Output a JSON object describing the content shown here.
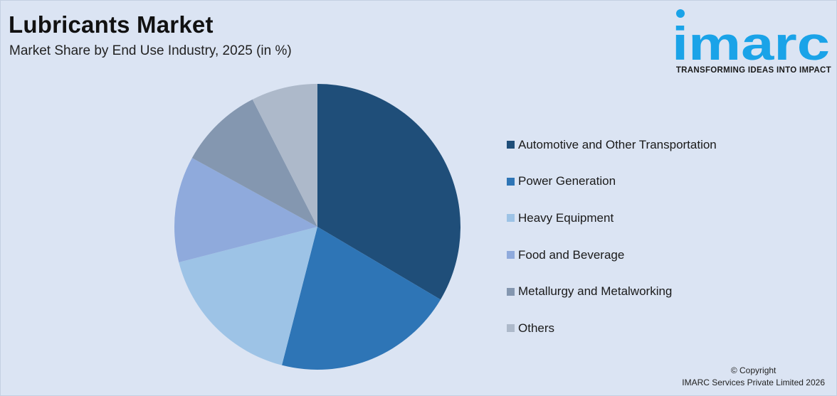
{
  "header": {
    "title": "Lubricants Market",
    "subtitle": "Market Share by End Use Industry, 2025 (in %)"
  },
  "logo": {
    "wordmark": "imarc",
    "tagline": "TRANSFORMING IDEAS INTO IMPACT",
    "color": "#1aa3e8"
  },
  "footer": {
    "copyright_line1": "© Copyright",
    "copyright_line2": "IMARC Services Private Limited 2026"
  },
  "chart_data": {
    "type": "pie",
    "title": "Lubricants Market",
    "subtitle": "Market Share by End Use Industry, 2025 (in %)",
    "legend_position": "right",
    "start": "12 o'clock, clockwise",
    "categories": [
      "Automotive and Other Transportation",
      "Power Generation",
      "Heavy Equipment",
      "Food and Beverage",
      "Metallurgy and Metalworking",
      "Others"
    ],
    "values": [
      33.5,
      20.5,
      17.0,
      12.0,
      9.5,
      7.5
    ],
    "colors": [
      "#1f4e79",
      "#2e75b6",
      "#9dc3e6",
      "#8faadc",
      "#8497b0",
      "#adb9ca"
    ]
  }
}
